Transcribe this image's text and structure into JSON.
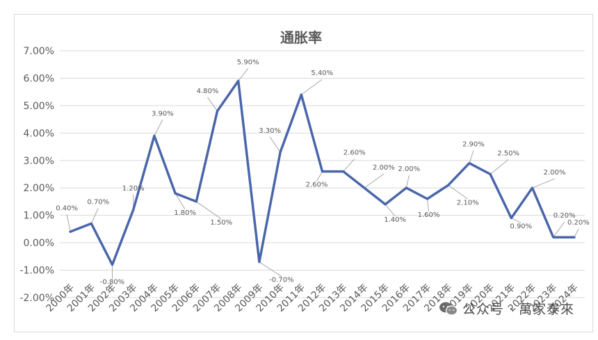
{
  "watermark": {
    "text": "公众号 · 萬家泰來",
    "icon": "wechat-icon"
  },
  "chart_data": {
    "type": "line",
    "title": "通胀率",
    "xlabel": "",
    "ylabel": "",
    "ylim": [
      -2,
      7
    ],
    "ytick_step": 1,
    "ytick_labels": [
      "-2.00%",
      "-1.00%",
      "0.00%",
      "1.00%",
      "2.00%",
      "3.00%",
      "4.00%",
      "5.00%",
      "6.00%",
      "7.00%"
    ],
    "grid": true,
    "legend": "none",
    "line_color": "#4a66ab",
    "categories": [
      "2000年",
      "2001年",
      "2002年",
      "2003年",
      "2004年",
      "2005年",
      "2006年",
      "2007年",
      "2008年",
      "2009年",
      "2010年",
      "2011年",
      "2012年",
      "2013年",
      "2014年",
      "2015年",
      "2016年",
      "2017年",
      "2018年",
      "2019年",
      "2020年",
      "2021年",
      "2022年",
      "2023年",
      "2024年"
    ],
    "values": [
      0.4,
      0.7,
      -0.8,
      1.2,
      3.9,
      1.8,
      1.5,
      4.8,
      5.9,
      -0.7,
      3.3,
      5.4,
      2.6,
      2.6,
      2.0,
      1.4,
      2.0,
      1.6,
      2.1,
      2.9,
      2.5,
      0.9,
      2.0,
      0.2,
      0.2
    ],
    "data_labels": [
      "0.40%",
      "0.70%",
      "-0.80%",
      "1.20%",
      "3.90%",
      "1.80%",
      "1.50%",
      "4.80%",
      "5.90%",
      "-0.70%",
      "3.30%",
      "5.40%",
      "2.60%",
      "2.60%",
      "2.00%",
      "1.40%",
      "2.00%",
      "1.60%",
      "2.10%",
      "2.90%",
      "2.50%",
      "0.90%",
      "2.00%",
      "0.20%",
      "0.20%"
    ]
  }
}
